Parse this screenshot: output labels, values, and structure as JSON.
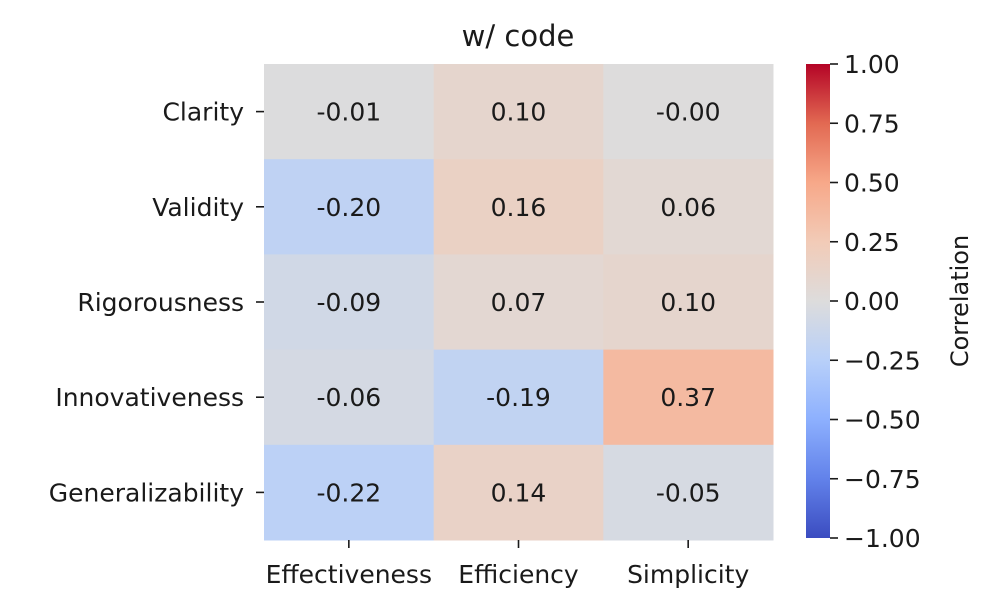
{
  "chart_data": {
    "type": "heatmap",
    "title": "w/ code",
    "rows": [
      "Clarity",
      "Validity",
      "Rigorousness",
      "Innovativeness",
      "Generalizability"
    ],
    "columns": [
      "Effectiveness",
      "Efficiency",
      "Simplicity"
    ],
    "values": [
      [
        -0.01,
        0.1,
        -0.0
      ],
      [
        -0.2,
        0.16,
        0.06
      ],
      [
        -0.09,
        0.07,
        0.1
      ],
      [
        -0.06,
        -0.19,
        0.37
      ],
      [
        -0.22,
        0.14,
        -0.05
      ]
    ],
    "cell_labels": [
      [
        "-0.01",
        "0.10",
        "-0.00"
      ],
      [
        "-0.20",
        "0.16",
        "0.06"
      ],
      [
        "-0.09",
        "0.07",
        "0.10"
      ],
      [
        "-0.06",
        "-0.19",
        "0.37"
      ],
      [
        "-0.22",
        "0.14",
        "-0.05"
      ]
    ],
    "colormap": "coolwarm",
    "vmin": -1.0,
    "vmax": 1.0,
    "colorbar": {
      "label": "Correlation",
      "ticks": [
        1.0,
        0.75,
        0.5,
        0.25,
        0.0,
        -0.25,
        -0.5,
        -0.75,
        -1.0
      ],
      "tick_labels": [
        "1.00",
        "0.75",
        "0.50",
        "0.25",
        "0.00",
        "−0.25",
        "−0.50",
        "−0.75",
        "−1.00"
      ],
      "colors": {
        "-1.00": "#3b4cc0",
        "-0.75": "#6282ea",
        "-0.50": "#8db0fe",
        "-0.25": "#b8d0f9",
        "0.00": "#dddcdc",
        "0.25": "#f2cbb7",
        "0.50": "#f7a889",
        "0.75": "#e26952",
        "1.00": "#b40426"
      }
    }
  }
}
